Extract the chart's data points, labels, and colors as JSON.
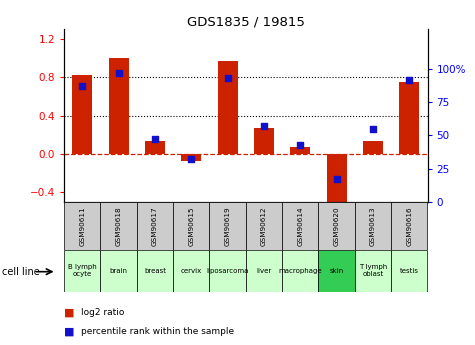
{
  "title": "GDS1835 / 19815",
  "gsm_labels": [
    "GSM90611",
    "GSM90618",
    "GSM90617",
    "GSM90615",
    "GSM90619",
    "GSM90612",
    "GSM90614",
    "GSM90620",
    "GSM90613",
    "GSM90616"
  ],
  "cell_line_labels": [
    "B lymph\nocyte",
    "brain",
    "breast",
    "cervix",
    "liposarcoma",
    "liver",
    "macrophage",
    "skin",
    "T lymph\noblast",
    "testis"
  ],
  "cell_line_colors": [
    "#ccffcc",
    "#ccffcc",
    "#ccffcc",
    "#ccffcc",
    "#ccffcc",
    "#ccffcc",
    "#ccffcc",
    "#33cc55",
    "#ccffcc",
    "#ccffcc"
  ],
  "log2_ratio": [
    0.82,
    1.0,
    0.13,
    -0.07,
    0.97,
    0.27,
    0.07,
    -0.52,
    0.13,
    0.75
  ],
  "percentile_rank": [
    87,
    97,
    47,
    32,
    93,
    57,
    43,
    17,
    55,
    92
  ],
  "bar_color": "#cc2200",
  "dot_color": "#1111cc",
  "ylim_left": [
    -0.5,
    1.3
  ],
  "ylim_right": [
    0,
    130
  ],
  "yticks_left": [
    -0.4,
    0.0,
    0.4,
    0.8,
    1.2
  ],
  "yticks_right": [
    0,
    25,
    50,
    75,
    100
  ],
  "ytick_labels_right": [
    "0",
    "25",
    "50",
    "75",
    "100%"
  ],
  "hline_y": [
    0.4,
    0.8
  ],
  "dashed_zero_color": "#cc2200",
  "gsm_bg_color": "#cccccc",
  "plot_bg": "#ffffff"
}
